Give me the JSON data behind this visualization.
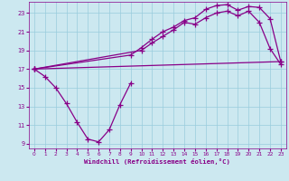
{
  "xlabel": "Windchill (Refroidissement éolien,°C)",
  "background_color": "#cce8f0",
  "grid_color": "#99ccdd",
  "line_color": "#880088",
  "xlim": [
    -0.5,
    23.5
  ],
  "ylim": [
    8.5,
    24.2
  ],
  "xticks": [
    0,
    1,
    2,
    3,
    4,
    5,
    6,
    7,
    8,
    9,
    10,
    11,
    12,
    13,
    14,
    15,
    16,
    17,
    18,
    19,
    20,
    21,
    22,
    23
  ],
  "yticks": [
    9,
    11,
    13,
    15,
    17,
    19,
    21,
    23
  ],
  "line1_x": [
    0,
    1,
    2,
    3,
    4,
    5,
    6,
    7,
    8,
    9
  ],
  "line1_y": [
    17.0,
    16.2,
    15.0,
    13.3,
    11.3,
    9.5,
    9.2,
    10.5,
    13.2,
    15.5
  ],
  "line2_x": [
    0,
    23
  ],
  "line2_y": [
    17.0,
    17.8
  ],
  "line3_x": [
    0,
    9,
    10,
    11,
    12,
    13,
    14,
    15,
    16,
    17,
    18,
    19,
    20,
    21,
    22,
    23
  ],
  "line3_y": [
    17.0,
    18.5,
    19.3,
    20.2,
    21.0,
    21.5,
    22.2,
    22.5,
    23.4,
    23.8,
    23.9,
    23.3,
    23.7,
    23.6,
    22.4,
    17.8
  ],
  "line4_x": [
    0,
    10,
    11,
    12,
    13,
    14,
    15,
    16,
    17,
    18,
    19,
    20,
    21,
    22,
    23
  ],
  "line4_y": [
    17.0,
    19.0,
    19.8,
    20.5,
    21.2,
    22.0,
    21.8,
    22.5,
    23.0,
    23.2,
    22.7,
    23.2,
    22.0,
    19.2,
    17.5
  ],
  "marker_size": 4,
  "line_width": 0.9
}
